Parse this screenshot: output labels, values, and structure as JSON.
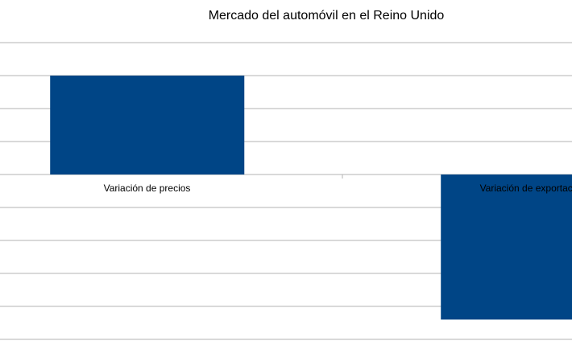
{
  "chart_data": {
    "type": "bar",
    "title": "Mercado del automóvil en el Reino Unido",
    "categories": [
      "Variación de precios",
      "Variación de exportaciones"
    ],
    "values": [
      3,
      -4.4
    ],
    "color": "#004586",
    "ylim": [
      -5,
      4
    ],
    "yticks": [
      -5,
      -4,
      -3,
      -2,
      -1,
      0,
      1,
      2,
      3,
      4
    ],
    "grid": true
  }
}
